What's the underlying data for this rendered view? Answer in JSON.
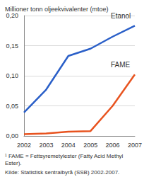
{
  "chart_data": {
    "type": "line",
    "y_label": "Millioner tonn oljeekvivalenter (mtoe)",
    "categories": [
      "2002",
      "2003",
      "2004",
      "2005",
      "2006",
      "2007"
    ],
    "series": [
      {
        "name": "Etanol",
        "color": "#2a5fc8",
        "values": [
          0.039,
          0.077,
          0.133,
          0.145,
          0.165,
          0.183
        ]
      },
      {
        "name": "FAME",
        "color": "#e8531f",
        "values": [
          0.003,
          0.004,
          0.007,
          0.008,
          0.05,
          0.102
        ]
      }
    ],
    "ylim": [
      0,
      0.2
    ],
    "yticks": [
      {
        "value": 0,
        "label": "0,00"
      },
      {
        "value": 0.05,
        "label": "0,05"
      },
      {
        "value": 0.1,
        "label": "0,10"
      },
      {
        "value": 0.15,
        "label": "0,15"
      },
      {
        "value": 0.2,
        "label": "0,20"
      }
    ],
    "grid": true,
    "footnote": "¹ FAME = Fettsyremetylester (Fatty Acid Methyl Ester).",
    "source": "Kilde: Statistisk sentralbyrå (SSB) 2002-2007."
  }
}
